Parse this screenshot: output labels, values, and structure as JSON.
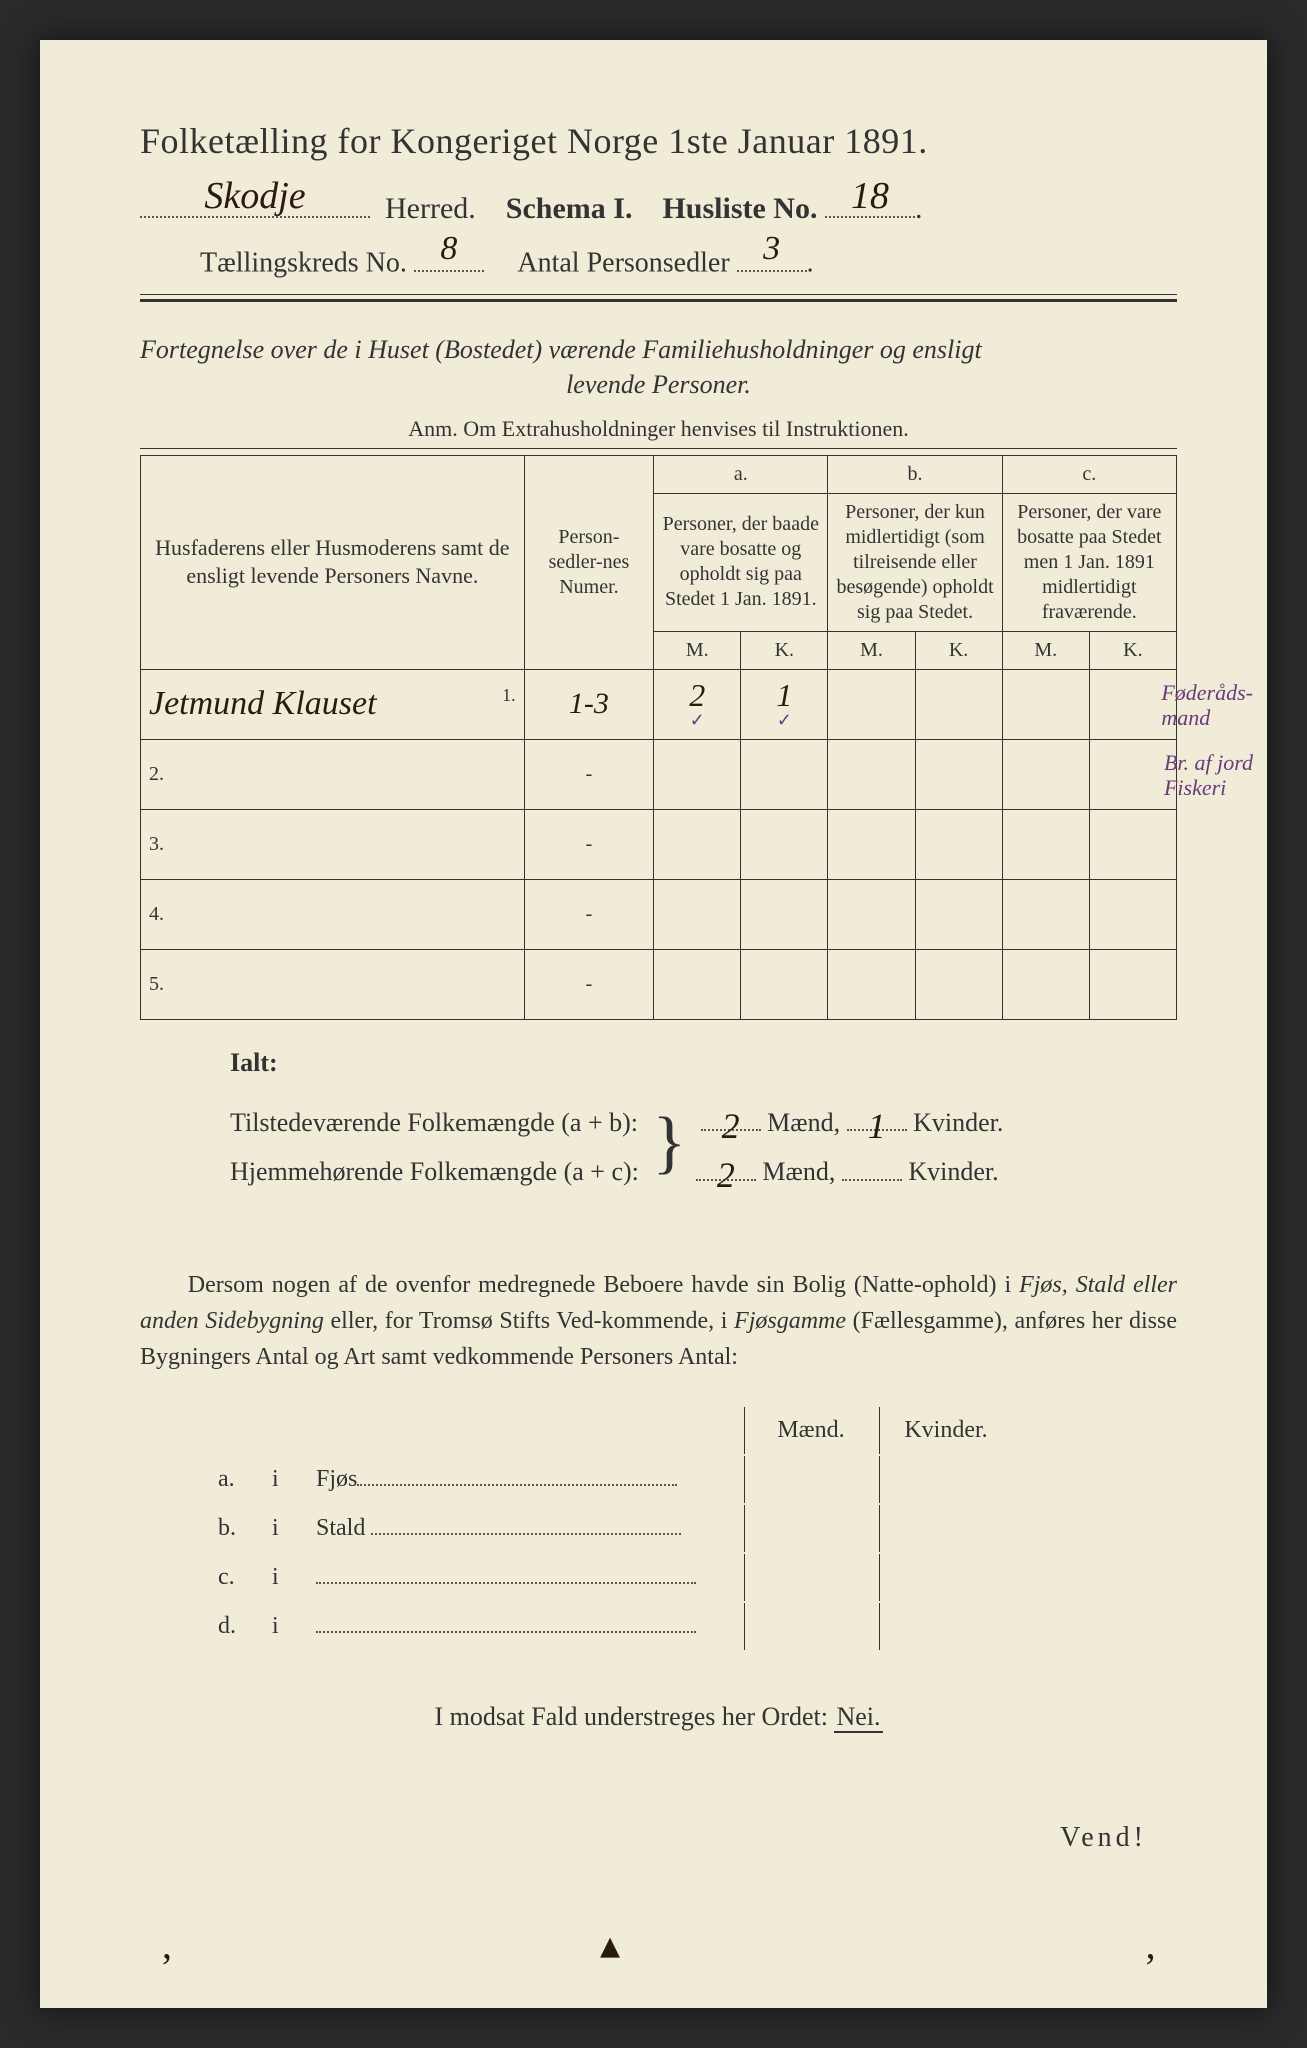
{
  "colors": {
    "paper_bg": "#f0ecd8",
    "page_bg": "#2a2a2a",
    "ink": "#333333",
    "handwriting": "#2b1a10",
    "purple": "#6a3a7a",
    "dotted": "#555555"
  },
  "typography": {
    "title_fontsize": 36,
    "subline_fontsize": 30,
    "body_fontsize": 24,
    "table_head_fontsize": 17,
    "family_print": "Times New Roman",
    "family_script": "Brush Script MT"
  },
  "header": {
    "title": "Folketælling for Kongeriget Norge 1ste Januar 1891.",
    "herred_value": "Skodje",
    "herred_label": "Herred.",
    "schema_label": "Schema I.",
    "husliste_label": "Husliste No.",
    "husliste_value": "18",
    "kreds_label": "Tællingskreds No.",
    "kreds_value": "8",
    "antal_label": "Antal Personsedler",
    "antal_value": "3"
  },
  "description": {
    "line1": "Fortegnelse over de i Huset (Bostedet) værende Familiehusholdninger og ensligt",
    "line2": "levende Personer.",
    "anm": "Anm.  Om Extrahusholdninger henvises til Instruktionen."
  },
  "table": {
    "head_names": "Husfaderens eller Husmoderens samt de ensligt levende Personers Navne.",
    "head_num": "Person-sedler-nes Numer.",
    "group_a_label": "a.",
    "group_a_text": "Personer, der baade vare bosatte og opholdt sig paa Stedet 1 Jan. 1891.",
    "group_b_label": "b.",
    "group_b_text": "Personer, der kun midlertidigt (som tilreisende eller besøgende) opholdt sig paa Stedet.",
    "group_c_label": "c.",
    "group_c_text": "Personer, der vare bosatte paa Stedet men 1 Jan. 1891 midlertidigt fraværende.",
    "mk_m": "M.",
    "mk_k": "K.",
    "rows": [
      {
        "num": "1.",
        "name": "Jetmund Klauset",
        "numer": "1-3",
        "a_m": "2",
        "a_k": "1",
        "b_m": "",
        "b_k": "",
        "c_m": "",
        "c_k": ""
      },
      {
        "num": "2.",
        "name": "",
        "numer": "-",
        "a_m": "",
        "a_k": "",
        "b_m": "",
        "b_k": "",
        "c_m": "",
        "c_k": ""
      },
      {
        "num": "3.",
        "name": "",
        "numer": "-",
        "a_m": "",
        "a_k": "",
        "b_m": "",
        "b_k": "",
        "c_m": "",
        "c_k": ""
      },
      {
        "num": "4.",
        "name": "",
        "numer": "-",
        "a_m": "",
        "a_k": "",
        "b_m": "",
        "b_k": "",
        "c_m": "",
        "c_k": ""
      },
      {
        "num": "5.",
        "name": "",
        "numer": "-",
        "a_m": "",
        "a_k": "",
        "b_m": "",
        "b_k": "",
        "c_m": "",
        "c_k": ""
      }
    ],
    "checkmark": "✓",
    "margin_notes": {
      "note1": "Føderåds-\nmand",
      "note2": "Br. af jord\nFiskeri"
    }
  },
  "ialt": {
    "label": "Ialt:",
    "row1_pre": "Tilstedeværende Folkemængde (a + b):",
    "row2_pre": "Hjemmehørende Folkemængde (a + c):",
    "maend_label": "Mænd,",
    "kvinder_label": "Kvinder.",
    "row1_m": "2",
    "row1_k": "1",
    "row2_m": "2",
    "row2_k": ""
  },
  "paragraph": {
    "text": "Dersom nogen af de ovenfor medregnede Beboere havde sin Bolig (Natteophold) i Fjøs, Stald eller anden Sidebygning eller, for Tromsø Stifts Vedkommende, i Fjøsgamme (Fællesgamme), anføres her disse Bygningers Antal og Art samt vedkommende Personers Antal:"
  },
  "bottom": {
    "head_m": "Mænd.",
    "head_k": "Kvinder.",
    "rows": [
      {
        "letter": "a.",
        "i": "i",
        "label": "Fjøs"
      },
      {
        "letter": "b.",
        "i": "i",
        "label": "Stald"
      },
      {
        "letter": "c.",
        "i": "i",
        "label": ""
      },
      {
        "letter": "d.",
        "i": "i",
        "label": ""
      }
    ]
  },
  "footer": {
    "nei_line_pre": "I modsat Fald understreges her Ordet:",
    "nei_word": "Nei.",
    "vend": "Vend!"
  }
}
